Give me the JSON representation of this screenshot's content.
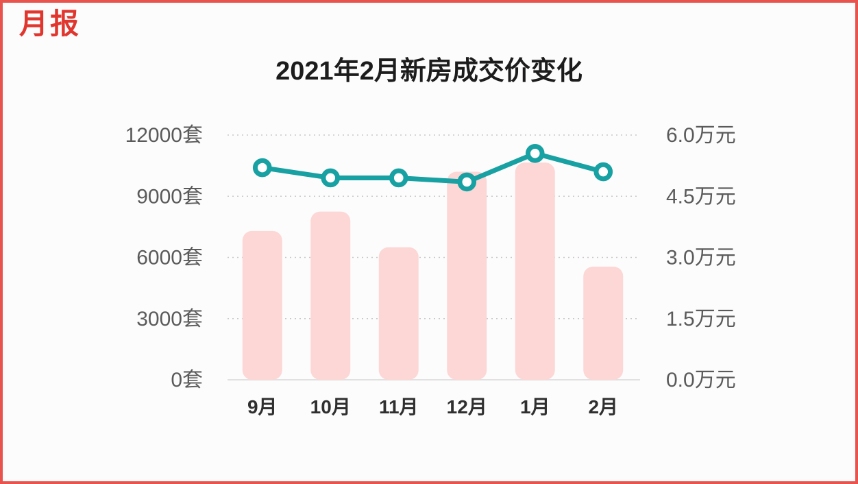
{
  "page": {
    "logo_text": "月报",
    "logo_color": "#e0362e",
    "border_color": "#e8534e",
    "background_color": "#fdfcfc"
  },
  "chart_data": {
    "type": "bar+line",
    "title": "2021年2月新房成交价变化",
    "categories": [
      "9月",
      "10月",
      "11月",
      "12月",
      "1月",
      "2月"
    ],
    "series": [
      {
        "type": "bar",
        "axis": "left",
        "unit": "套",
        "color": "#fcd7d5",
        "values": [
          7300,
          8250,
          6500,
          10200,
          10650,
          5550
        ]
      },
      {
        "type": "line",
        "axis": "right",
        "unit": "万元",
        "color": "#18a1a2",
        "marker_fill": "#ffffff",
        "values": [
          5.2,
          4.95,
          4.95,
          4.85,
          5.55,
          5.1
        ]
      }
    ],
    "left_axis": {
      "unit": "套",
      "min": 0,
      "max": 12000,
      "ticks": [
        0,
        3000,
        6000,
        9000,
        12000
      ],
      "labels": [
        "0套",
        "3000套",
        "6000套",
        "9000套",
        "12000套"
      ]
    },
    "right_axis": {
      "unit": "万元",
      "min": 0,
      "max": 6.0,
      "ticks": [
        0.0,
        1.5,
        3.0,
        4.5,
        6.0
      ],
      "labels": [
        "0.0万元",
        "1.5万元",
        "3.0万元",
        "4.5万元",
        "6.0万元"
      ]
    },
    "grid": {
      "horizontal": "dotted",
      "vertical": "none"
    },
    "legend": "none",
    "axis_label_color": "#5a5a5a",
    "x_label_color": "#2f2f2f",
    "gridline_color": "#c9c7c7",
    "baseline_color": "#e2e0e0"
  }
}
